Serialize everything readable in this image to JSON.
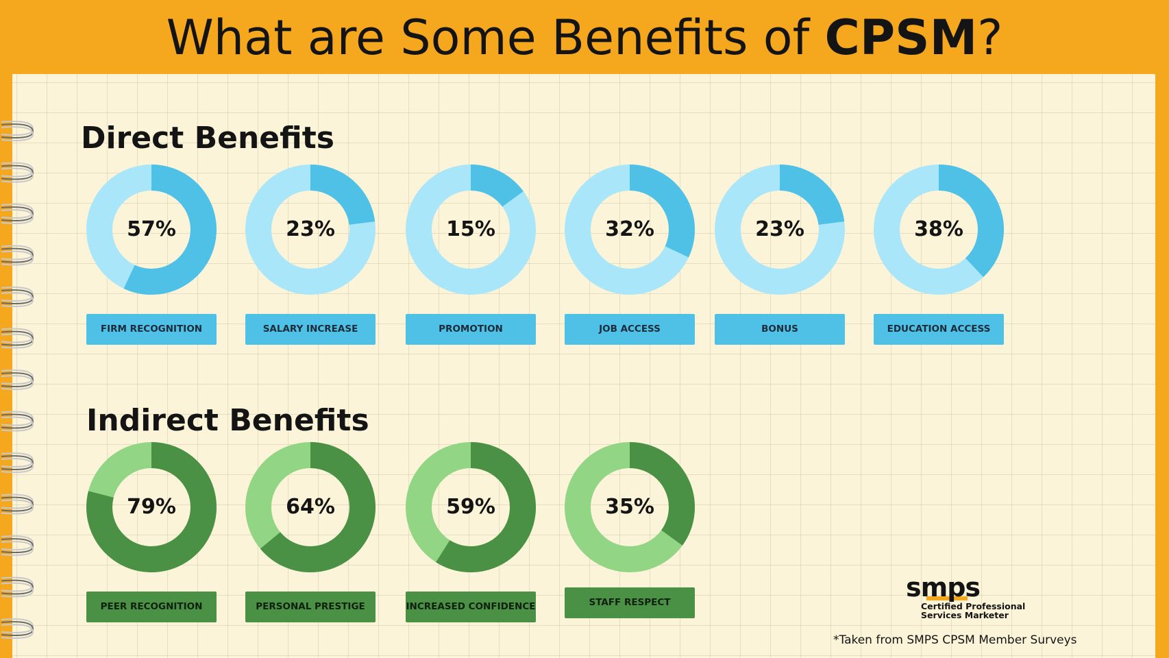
{
  "title": {
    "prefix": "What are Some Benefits of ",
    "bold": "CPSM",
    "suffix": "?"
  },
  "colors": {
    "direct_filled": "#4fc1e6",
    "direct_remaining": "#a9e6f9",
    "direct_label_bg": "#4fc1e6",
    "indirect_filled": "#4b9145",
    "indirect_remaining": "#92d585",
    "indirect_label_bg": "#4b9145"
  },
  "chart_data": [
    {
      "type": "pie",
      "title": "Direct Benefits",
      "categories": [
        "FIRM RECOGNITION",
        "SALARY INCREASE",
        "PROMOTION",
        "JOB ACCESS",
        "BONUS",
        "EDUCATION ACCESS"
      ],
      "values": [
        57,
        23,
        15,
        32,
        23,
        38
      ],
      "value_labels": [
        "57%",
        "23%",
        "15%",
        "32%",
        "23%",
        "38%"
      ]
    },
    {
      "type": "pie",
      "title": "Indirect Benefits",
      "categories": [
        "PEER RECOGNITION",
        "PERSONAL PRESTIGE",
        "INCREASED CONFIDENCE",
        "STAFF RESPECT"
      ],
      "values": [
        79,
        64,
        59,
        35
      ],
      "value_labels": [
        "79%",
        "64%",
        "59%",
        "35%"
      ]
    }
  ],
  "logo": {
    "wordmark": "smps",
    "line1": "Certified Professional",
    "line2": "Services Marketer"
  },
  "footnote": "*Taken from SMPS CPSM Member Surveys"
}
